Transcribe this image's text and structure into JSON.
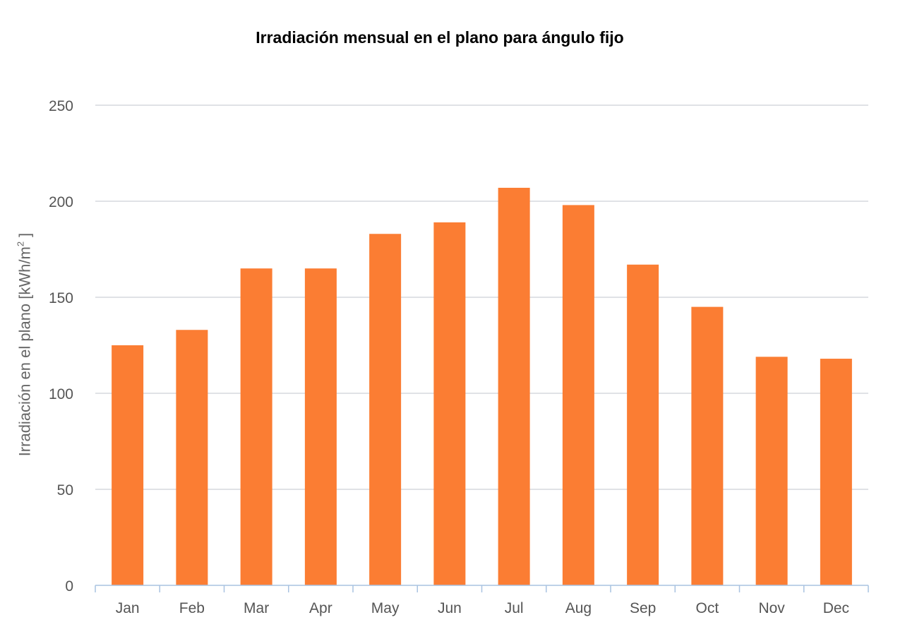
{
  "chart_data": {
    "type": "bar",
    "title": "Irradiación mensual en el plano para ángulo fijo",
    "ylabel": "Irradiación en el plano [kWh/m",
    "ylabel_superscript": "2",
    "ylabel_suffix": " ]",
    "categories": [
      "Jan",
      "Feb",
      "Mar",
      "Apr",
      "May",
      "Jun",
      "Jul",
      "Aug",
      "Sep",
      "Oct",
      "Nov",
      "Dec"
    ],
    "values": [
      125,
      133,
      165,
      165,
      183,
      189,
      207,
      198,
      167,
      145,
      119,
      118
    ],
    "ylim": [
      0,
      250
    ],
    "yticks": [
      0,
      50,
      100,
      150,
      200,
      250
    ],
    "grid": true,
    "bar_color": "#FB7D33",
    "grid_color": "#D6D9DE",
    "axis_color": "#A9C3E1"
  }
}
